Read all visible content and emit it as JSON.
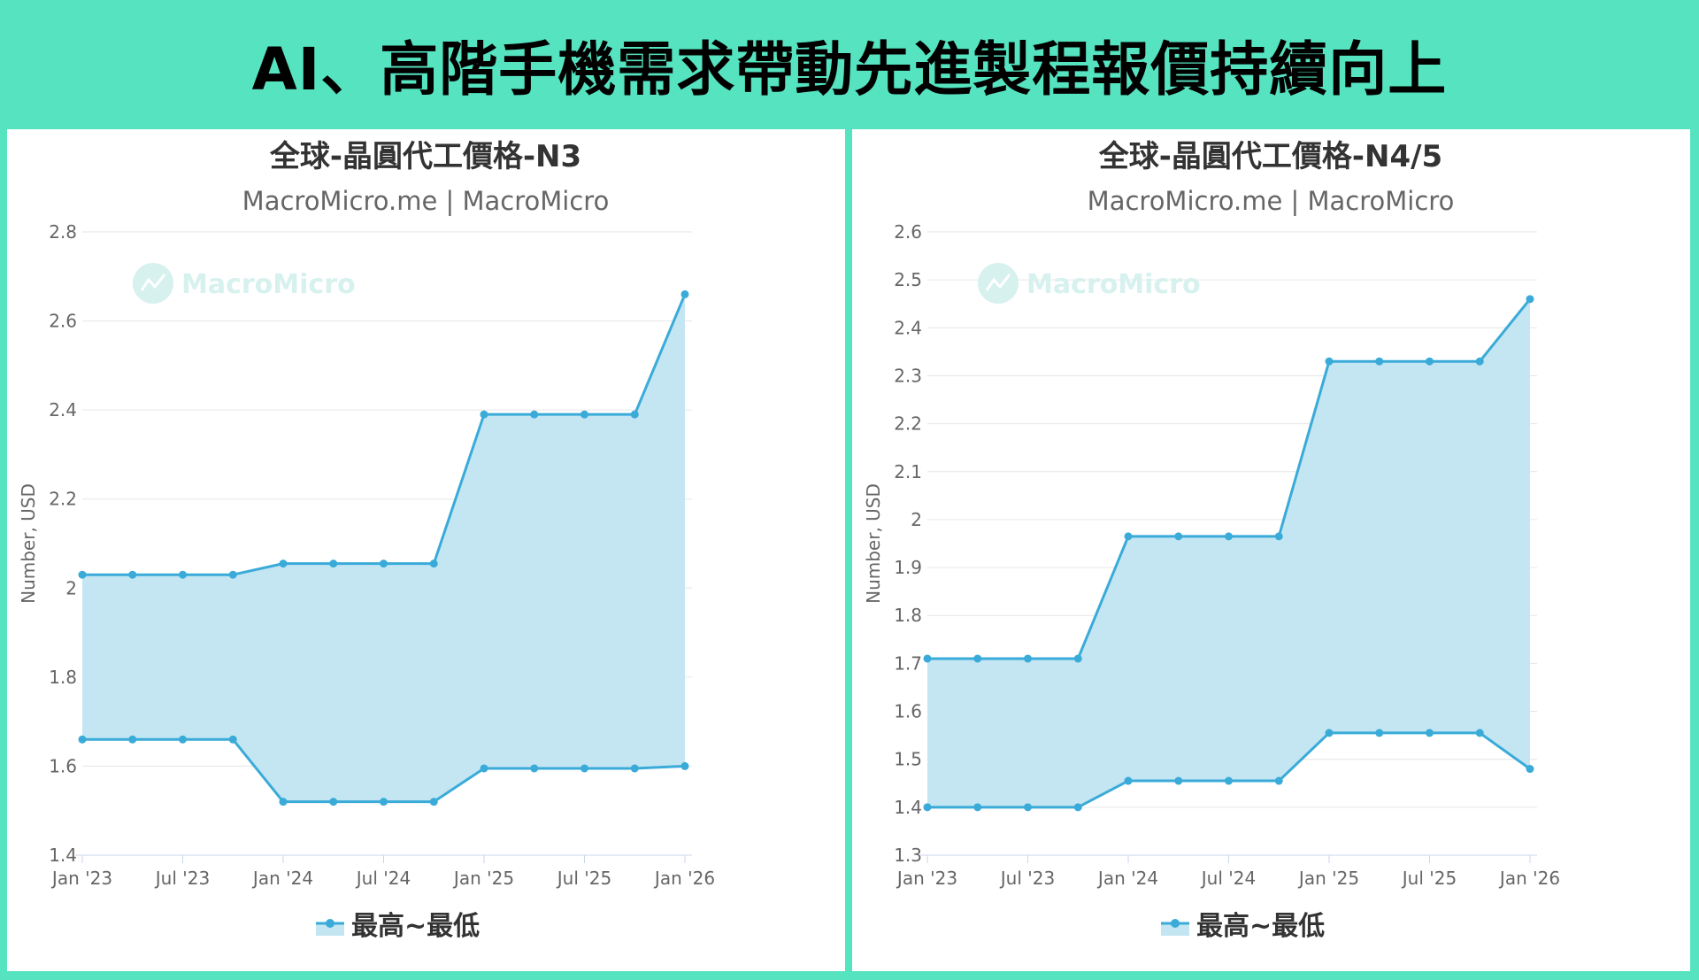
{
  "headline": "AI、高階手機需求帶動先進製程報價持續向上",
  "colors": {
    "background": "#56e3c0",
    "panel": "#ffffff",
    "line": "#3aabd8",
    "area": "#c4e6f3",
    "grid": "#e6e6e6",
    "watermark": "#d6f1ee"
  },
  "chart_data": [
    {
      "type": "area",
      "title": "全球-晶圓代工價格-N3",
      "subtitle": "MacroMicro.me | MacroMicro",
      "watermark": "MacroMicro",
      "ylabel": "Number, USD",
      "ylim": [
        1.4,
        2.8
      ],
      "ytick_labels": [
        "1.4",
        "1.6",
        "1.8",
        "2",
        "2.2",
        "2.4",
        "2.6",
        "2.8"
      ],
      "xlim": [
        "2023-01",
        "2026-01"
      ],
      "xtick_labels": [
        "Jan '23",
        "Jul '23",
        "Jan '24",
        "Jul '24",
        "Jan '25",
        "Jul '25",
        "Jan '26"
      ],
      "x": [
        "2023-01",
        "2023-04",
        "2023-07",
        "2023-10",
        "2024-01",
        "2024-04",
        "2024-07",
        "2024-10",
        "2025-01",
        "2025-04",
        "2025-07",
        "2025-10",
        "2026-01"
      ],
      "series": [
        {
          "name": "最高~最低",
          "high": [
            2.03,
            2.03,
            2.03,
            2.03,
            2.055,
            2.055,
            2.055,
            2.055,
            2.39,
            2.39,
            2.39,
            2.39,
            2.66
          ],
          "low": [
            1.66,
            1.66,
            1.66,
            1.66,
            1.52,
            1.52,
            1.52,
            1.52,
            1.595,
            1.595,
            1.595,
            1.595,
            1.6
          ]
        }
      ],
      "legend": "最高~最低",
      "legend_position": "bottom-center",
      "grid": true
    },
    {
      "type": "area",
      "title": "全球-晶圓代工價格-N4/5",
      "subtitle": "MacroMicro.me | MacroMicro",
      "watermark": "MacroMicro",
      "ylabel": "Number, USD",
      "ylim": [
        1.3,
        2.6
      ],
      "ytick_labels": [
        "1.3",
        "1.4",
        "1.5",
        "1.6",
        "1.7",
        "1.8",
        "1.9",
        "2",
        "2.1",
        "2.2",
        "2.3",
        "2.4",
        "2.5",
        "2.6"
      ],
      "xlim": [
        "2023-01",
        "2026-01"
      ],
      "xtick_labels": [
        "Jan '23",
        "Jul '23",
        "Jan '24",
        "Jul '24",
        "Jan '25",
        "Jul '25",
        "Jan '26"
      ],
      "x": [
        "2023-01",
        "2023-04",
        "2023-07",
        "2023-10",
        "2024-01",
        "2024-04",
        "2024-07",
        "2024-10",
        "2025-01",
        "2025-04",
        "2025-07",
        "2025-10",
        "2026-01"
      ],
      "series": [
        {
          "name": "最高~最低",
          "high": [
            1.71,
            1.71,
            1.71,
            1.71,
            1.965,
            1.965,
            1.965,
            1.965,
            2.33,
            2.33,
            2.33,
            2.33,
            2.46
          ],
          "low": [
            1.4,
            1.4,
            1.4,
            1.4,
            1.455,
            1.455,
            1.455,
            1.455,
            1.555,
            1.555,
            1.555,
            1.555,
            1.48
          ]
        }
      ],
      "legend": "最高~最低",
      "legend_position": "bottom-center",
      "grid": true
    }
  ]
}
